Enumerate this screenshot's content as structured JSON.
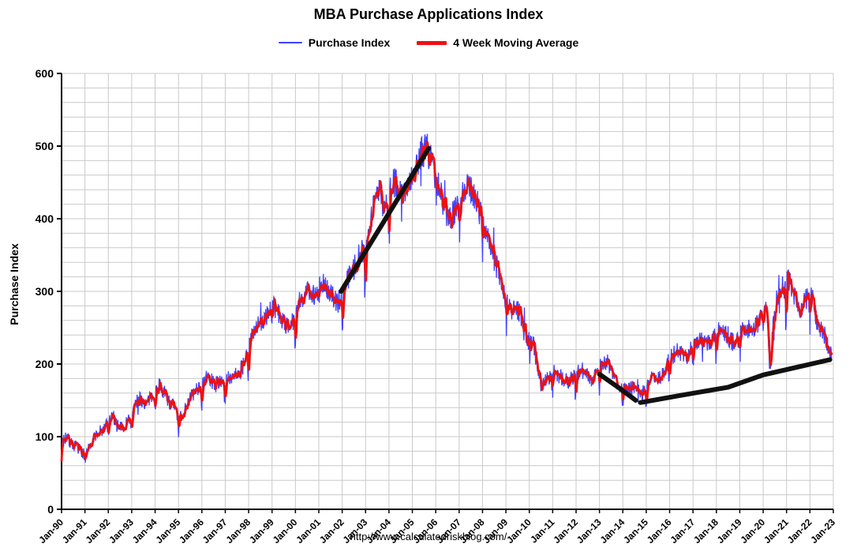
{
  "header": {
    "title": "MBA Purchase Applications Index"
  },
  "legend": [
    {
      "label": "Purchase Index",
      "color": "#4040ff",
      "sample_width": 30,
      "sample_height": 2
    },
    {
      "label": "4 Week Moving Average",
      "color": "#ee1111",
      "sample_width": 38,
      "sample_height": 5
    }
  ],
  "footer": {
    "url": "http://www.calculatedriskblog.com/"
  },
  "chart_data": {
    "type": "line",
    "title": "MBA Purchase Applications Index",
    "xlabel": "",
    "ylabel": "Purchase Index",
    "ylim": [
      0,
      600
    ],
    "y_ticks": [
      0,
      100,
      200,
      300,
      400,
      500,
      600
    ],
    "y_minor_step": 20,
    "x_range": [
      1990,
      2023
    ],
    "x_tick_labels": [
      "Jan-90",
      "Jan-91",
      "Jan-92",
      "Jan-93",
      "Jan-94",
      "Jan-95",
      "Jan-96",
      "Jan-97",
      "Jan-98",
      "Jan-99",
      "Jan-00",
      "Jan-01",
      "Jan-02",
      "Jan-03",
      "Jan-04",
      "Jan-05",
      "Jan-06",
      "Jan-07",
      "Jan-08",
      "Jan-09",
      "Jan-10",
      "Jan-11",
      "Jan-12",
      "Jan-13",
      "Jan-14",
      "Jan-15",
      "Jan-16",
      "Jan-17",
      "Jan-18",
      "Jan-19",
      "Jan-20",
      "Jan-21",
      "Jan-22",
      "Jan-23"
    ],
    "grid": true,
    "grid_color": "#c9c9c9",
    "legend_position": "top",
    "series": [
      {
        "name": "Purchase Index",
        "color": "#4040ff",
        "style": "weekly noisy line tracking the moving average",
        "noise": {
          "base": 5,
          "scale": 0.035,
          "spike_chance": 0.975,
          "seed": 7
        }
      },
      {
        "name": "4 Week Moving Average",
        "color": "#ee1111",
        "points": [
          [
            1990.0,
            95
          ],
          [
            1990.15,
            100
          ],
          [
            1990.3,
            95
          ],
          [
            1990.5,
            88
          ],
          [
            1990.7,
            85
          ],
          [
            1990.9,
            78
          ],
          [
            1991.05,
            72
          ],
          [
            1991.2,
            90
          ],
          [
            1991.4,
            100
          ],
          [
            1991.6,
            105
          ],
          [
            1991.8,
            108
          ],
          [
            1992.0,
            120
          ],
          [
            1992.2,
            128
          ],
          [
            1992.4,
            118
          ],
          [
            1992.6,
            112
          ],
          [
            1992.8,
            120
          ],
          [
            1993.0,
            132
          ],
          [
            1993.2,
            148
          ],
          [
            1993.4,
            152
          ],
          [
            1993.6,
            145
          ],
          [
            1993.8,
            152
          ],
          [
            1994.0,
            162
          ],
          [
            1994.2,
            172
          ],
          [
            1994.4,
            160
          ],
          [
            1994.6,
            148
          ],
          [
            1994.8,
            142
          ],
          [
            1995.0,
            126
          ],
          [
            1995.2,
            132
          ],
          [
            1995.4,
            148
          ],
          [
            1995.6,
            158
          ],
          [
            1995.8,
            165
          ],
          [
            1996.0,
            172
          ],
          [
            1996.2,
            180
          ],
          [
            1996.4,
            178
          ],
          [
            1996.6,
            172
          ],
          [
            1996.8,
            178
          ],
          [
            1997.0,
            176
          ],
          [
            1997.2,
            182
          ],
          [
            1997.4,
            188
          ],
          [
            1997.6,
            190
          ],
          [
            1997.8,
            198
          ],
          [
            1998.0,
            218
          ],
          [
            1998.2,
            248
          ],
          [
            1998.4,
            255
          ],
          [
            1998.6,
            258
          ],
          [
            1998.8,
            268
          ],
          [
            1999.0,
            282
          ],
          [
            1999.2,
            272
          ],
          [
            1999.4,
            262
          ],
          [
            1999.6,
            252
          ],
          [
            1999.8,
            258
          ],
          [
            2000.0,
            262
          ],
          [
            2000.2,
            288
          ],
          [
            2000.4,
            298
          ],
          [
            2000.6,
            302
          ],
          [
            2000.8,
            295
          ],
          [
            2001.0,
            306
          ],
          [
            2001.2,
            310
          ],
          [
            2001.4,
            300
          ],
          [
            2001.6,
            292
          ],
          [
            2001.8,
            282
          ],
          [
            2002.0,
            298
          ],
          [
            2002.2,
            315
          ],
          [
            2002.4,
            330
          ],
          [
            2002.6,
            342
          ],
          [
            2002.8,
            352
          ],
          [
            2003.0,
            362
          ],
          [
            2003.2,
            395
          ],
          [
            2003.4,
            430
          ],
          [
            2003.6,
            442
          ],
          [
            2003.8,
            420
          ],
          [
            2004.0,
            432
          ],
          [
            2004.2,
            450
          ],
          [
            2004.4,
            445
          ],
          [
            2004.6,
            438
          ],
          [
            2004.8,
            448
          ],
          [
            2005.0,
            462
          ],
          [
            2005.2,
            478
          ],
          [
            2005.4,
            490
          ],
          [
            2005.6,
            498
          ],
          [
            2005.8,
            482
          ],
          [
            2006.0,
            462
          ],
          [
            2006.2,
            435
          ],
          [
            2006.4,
            412
          ],
          [
            2006.6,
            400
          ],
          [
            2006.8,
            408
          ],
          [
            2007.0,
            420
          ],
          [
            2007.2,
            438
          ],
          [
            2007.4,
            445
          ],
          [
            2007.6,
            432
          ],
          [
            2007.8,
            418
          ],
          [
            2008.0,
            398
          ],
          [
            2008.2,
            378
          ],
          [
            2008.4,
            355
          ],
          [
            2008.6,
            335
          ],
          [
            2008.8,
            315
          ],
          [
            2009.0,
            288
          ],
          [
            2009.2,
            272
          ],
          [
            2009.4,
            280
          ],
          [
            2009.6,
            268
          ],
          [
            2009.8,
            242
          ],
          [
            2010.0,
            232
          ],
          [
            2010.2,
            225
          ],
          [
            2010.35,
            195
          ],
          [
            2010.5,
            172
          ],
          [
            2010.7,
            178
          ],
          [
            2010.9,
            185
          ],
          [
            2011.0,
            190
          ],
          [
            2011.2,
            186
          ],
          [
            2011.4,
            182
          ],
          [
            2011.6,
            176
          ],
          [
            2011.8,
            180
          ],
          [
            2012.0,
            186
          ],
          [
            2012.2,
            192
          ],
          [
            2012.4,
            188
          ],
          [
            2012.6,
            180
          ],
          [
            2012.8,
            184
          ],
          [
            2013.0,
            196
          ],
          [
            2013.2,
            206
          ],
          [
            2013.4,
            200
          ],
          [
            2013.6,
            182
          ],
          [
            2013.8,
            172
          ],
          [
            2014.0,
            168
          ],
          [
            2014.2,
            164
          ],
          [
            2014.4,
            167
          ],
          [
            2014.6,
            165
          ],
          [
            2014.8,
            158
          ],
          [
            2015.0,
            166
          ],
          [
            2015.2,
            184
          ],
          [
            2015.4,
            178
          ],
          [
            2015.6,
            182
          ],
          [
            2015.8,
            188
          ],
          [
            2016.0,
            208
          ],
          [
            2016.2,
            214
          ],
          [
            2016.4,
            218
          ],
          [
            2016.6,
            214
          ],
          [
            2016.8,
            212
          ],
          [
            2017.0,
            224
          ],
          [
            2017.2,
            234
          ],
          [
            2017.4,
            230
          ],
          [
            2017.6,
            228
          ],
          [
            2017.8,
            232
          ],
          [
            2018.0,
            242
          ],
          [
            2018.2,
            246
          ],
          [
            2018.4,
            240
          ],
          [
            2018.6,
            232
          ],
          [
            2018.8,
            228
          ],
          [
            2019.0,
            238
          ],
          [
            2019.2,
            252
          ],
          [
            2019.4,
            248
          ],
          [
            2019.6,
            252
          ],
          [
            2019.8,
            258
          ],
          [
            2020.0,
            272
          ],
          [
            2020.15,
            282
          ],
          [
            2020.28,
            192
          ],
          [
            2020.45,
            262
          ],
          [
            2020.6,
            298
          ],
          [
            2020.8,
            292
          ],
          [
            2021.0,
            312
          ],
          [
            2021.1,
            318
          ],
          [
            2021.25,
            300
          ],
          [
            2021.4,
            285
          ],
          [
            2021.6,
            272
          ],
          [
            2021.8,
            288
          ],
          [
            2022.0,
            295
          ],
          [
            2022.1,
            290
          ],
          [
            2022.25,
            262
          ],
          [
            2022.4,
            252
          ],
          [
            2022.55,
            248
          ],
          [
            2022.7,
            232
          ],
          [
            2022.85,
            215
          ],
          [
            2022.95,
            208
          ]
        ]
      }
    ],
    "annotations": [
      {
        "name": "black-trend-2002-2006",
        "color": "#111111",
        "width": 6,
        "points": [
          [
            2001.95,
            300
          ],
          [
            2005.7,
            497
          ]
        ]
      },
      {
        "name": "black-trend-2013-2014",
        "color": "#111111",
        "width": 6,
        "points": [
          [
            2013.0,
            186
          ],
          [
            2013.8,
            168
          ],
          [
            2014.55,
            150
          ]
        ]
      },
      {
        "name": "black-trend-2015-2023",
        "color": "#111111",
        "width": 6,
        "points": [
          [
            2014.75,
            147
          ],
          [
            2016.5,
            157
          ],
          [
            2018.5,
            168
          ],
          [
            2020.0,
            185
          ],
          [
            2021.5,
            196
          ],
          [
            2022.85,
            206
          ]
        ]
      }
    ]
  }
}
